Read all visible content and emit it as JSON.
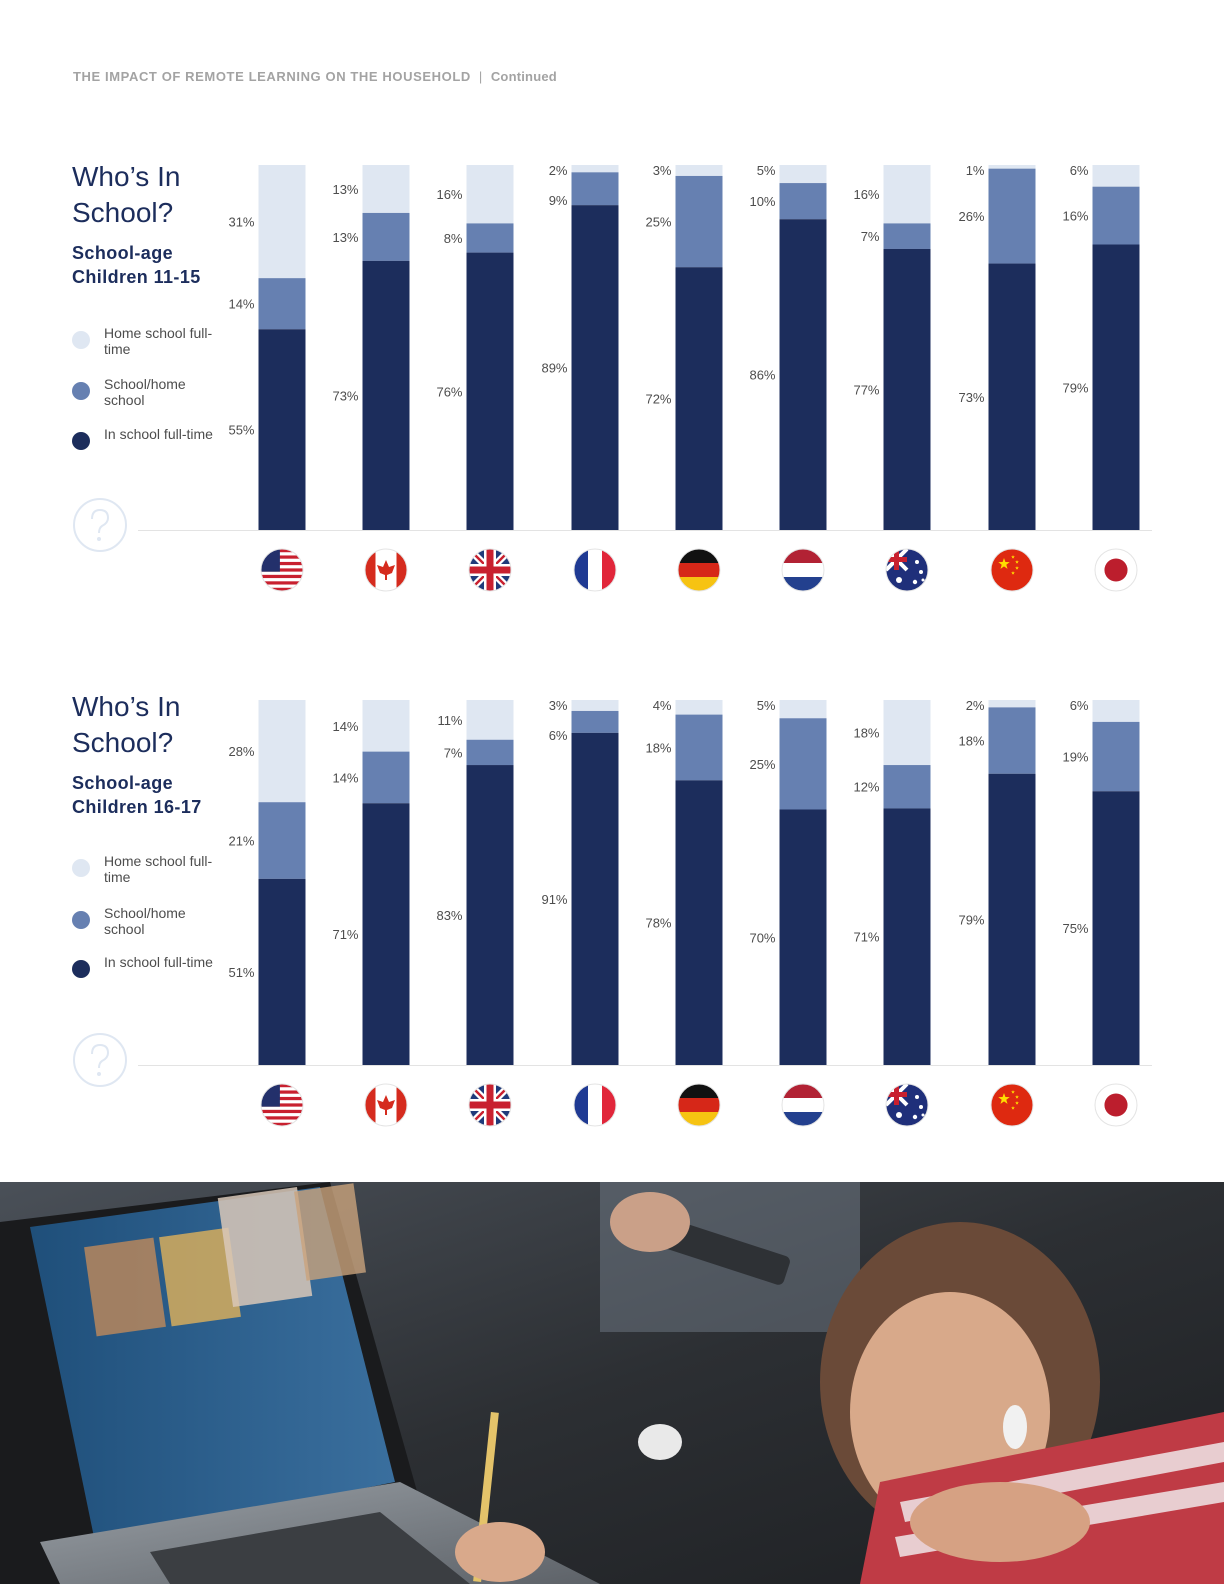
{
  "header": {
    "title": "THE IMPACT OF REMOTE LEARNING ON THE HOUSEHOLD",
    "separator": "|",
    "continued": "Continued"
  },
  "legend": {
    "home": "Home school full-time",
    "mixed": "School/home school",
    "inschool": "In school full-time"
  },
  "colors": {
    "home": "#dfe7f2",
    "mixed": "#6680b1",
    "inschool": "#1c2d5c",
    "axis": "#e3e3e3"
  },
  "countries": [
    "us-flag-icon",
    "canada-flag-icon",
    "uk-flag-icon",
    "france-flag-icon",
    "germany-flag-icon",
    "netherlands-flag-icon",
    "australia-flag-icon",
    "china-flag-icon",
    "japan-flag-icon"
  ],
  "sections": [
    {
      "title": "Who’s In School?",
      "subtitle": "School-age Children 11-15"
    },
    {
      "title": "Who’s In School?",
      "subtitle": "School-age Children 16-17"
    }
  ],
  "photo": {
    "description": "girl-remote-learning-photo"
  },
  "chart_data": [
    {
      "type": "bar",
      "stacked": true,
      "title": "Who’s In School?",
      "subtitle": "School-age Children 11-15",
      "categories": [
        "us-flag-icon",
        "canada-flag-icon",
        "uk-flag-icon",
        "france-flag-icon",
        "germany-flag-icon",
        "netherlands-flag-icon",
        "australia-flag-icon",
        "china-flag-icon",
        "japan-flag-icon"
      ],
      "series": [
        {
          "name": "In school full-time",
          "values": [
            55,
            73,
            76,
            89,
            72,
            86,
            77,
            73,
            79
          ]
        },
        {
          "name": "School/home school",
          "values": [
            14,
            13,
            8,
            9,
            25,
            10,
            7,
            26,
            16
          ]
        },
        {
          "name": "Home school full-time",
          "values": [
            31,
            13,
            16,
            2,
            3,
            5,
            16,
            1,
            6
          ]
        }
      ],
      "ylim": [
        0,
        100
      ],
      "grid": false,
      "legend_position": "left"
    },
    {
      "type": "bar",
      "stacked": true,
      "title": "Who’s In School?",
      "subtitle": "School-age Children 16-17",
      "categories": [
        "us-flag-icon",
        "canada-flag-icon",
        "uk-flag-icon",
        "france-flag-icon",
        "germany-flag-icon",
        "netherlands-flag-icon",
        "australia-flag-icon",
        "china-flag-icon",
        "japan-flag-icon"
      ],
      "series": [
        {
          "name": "In school full-time",
          "values": [
            51,
            71,
            83,
            91,
            78,
            70,
            71,
            79,
            75
          ]
        },
        {
          "name": "School/home school",
          "values": [
            21,
            14,
            7,
            6,
            18,
            25,
            12,
            18,
            19
          ]
        },
        {
          "name": "Home school full-time",
          "values": [
            28,
            14,
            11,
            3,
            4,
            5,
            18,
            2,
            6
          ]
        }
      ],
      "ylim": [
        0,
        100
      ],
      "grid": false,
      "legend_position": "left"
    }
  ]
}
